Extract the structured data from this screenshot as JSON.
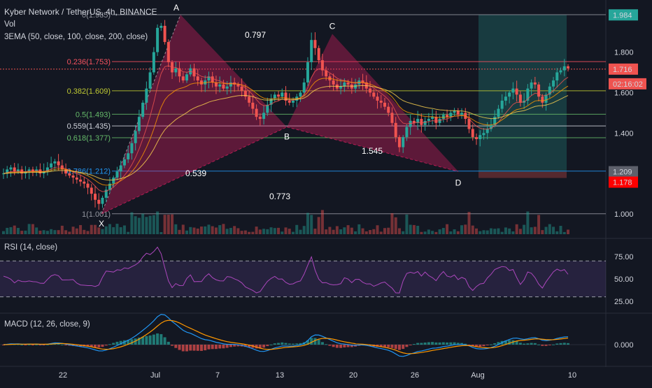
{
  "header": {
    "title": "Kyber Network / TetherUS, 4h, BINANCE",
    "vol_label": "Vol",
    "ema_label": "3EMA (50, close, 100, close, 200, close)",
    "rsi_label": "RSI (14, close)",
    "macd_label": "MACD (12, 26, close, 9)"
  },
  "chart_data": {
    "type": "candlestick",
    "symbol": "Kyber Network / TetherUS",
    "timeframe": "4h",
    "exchange": "BINANCE",
    "x_tick_labels": [
      "22",
      "Jul",
      "7",
      "13",
      "20",
      "26",
      "Aug",
      "10"
    ],
    "price_axis_ticks": [
      "1.800",
      "1.600",
      "1.400",
      "1.000"
    ],
    "price_ylim": [
      0.9,
      2.03
    ],
    "price_tags": [
      {
        "value": "1.984",
        "color": "#26a69a"
      },
      {
        "value": "1.716",
        "color": "#ef5350"
      },
      {
        "value": "02:16:02",
        "color": "#ef5350"
      },
      {
        "value": "1.209",
        "color": "#5d606b"
      },
      {
        "value": "1.178",
        "color": "#ff0000"
      }
    ],
    "fib_levels": [
      {
        "label": "0(1.985)",
        "price": 1.985,
        "color": "#9598a1"
      },
      {
        "label": "0.236(1.753)",
        "price": 1.753,
        "color": "#f7525f"
      },
      {
        "label": "0.382(1.609)",
        "price": 1.609,
        "color": "#c0ca33"
      },
      {
        "label": "0.5(1.493)",
        "price": 1.493,
        "color": "#66bb6a"
      },
      {
        "label": "0.559(1.435)",
        "price": 1.435,
        "color": "#d1d4dc"
      },
      {
        "label": "0.618(1.377)",
        "price": 1.377,
        "color": "#66bb6a"
      },
      {
        "label": "0.786(1.212)",
        "price": 1.212,
        "color": "#2196f3"
      },
      {
        "label": "1(1.001)",
        "price": 1.001,
        "color": "#9598a1"
      }
    ],
    "harmonic_points": [
      {
        "label": "X",
        "price": 1.001
      },
      {
        "label": "A",
        "price": 1.985
      },
      {
        "label": "B",
        "price": 1.43
      },
      {
        "label": "C",
        "price": 1.89
      },
      {
        "label": "D",
        "price": 1.21
      }
    ],
    "harmonic_ratios": [
      "0.797",
      "0.539",
      "0.773",
      "1.545"
    ],
    "close_series": [
      1.2,
      1.22,
      1.23,
      1.21,
      1.22,
      1.2,
      1.21,
      1.22,
      1.21,
      1.22,
      1.2,
      1.21,
      1.23,
      1.25,
      1.26,
      1.24,
      1.22,
      1.2,
      1.19,
      1.18,
      1.17,
      1.16,
      1.15,
      1.13,
      1.1,
      1.07,
      1.05,
      1.08,
      1.12,
      1.15,
      1.18,
      1.21,
      1.24,
      1.27,
      1.3,
      1.35,
      1.41,
      1.48,
      1.55,
      1.62,
      1.7,
      1.8,
      1.92,
      1.93,
      1.85,
      1.75,
      1.7,
      1.72,
      1.68,
      1.66,
      1.69,
      1.72,
      1.68,
      1.66,
      1.64,
      1.66,
      1.68,
      1.65,
      1.63,
      1.64,
      1.62,
      1.63,
      1.65,
      1.64,
      1.63,
      1.61,
      1.58,
      1.55,
      1.52,
      1.48,
      1.47,
      1.5,
      1.54,
      1.57,
      1.59,
      1.58,
      1.6,
      1.56,
      1.55,
      1.56,
      1.58,
      1.6,
      1.65,
      1.75,
      1.86,
      1.82,
      1.76,
      1.71,
      1.68,
      1.66,
      1.64,
      1.62,
      1.63,
      1.65,
      1.64,
      1.62,
      1.64,
      1.66,
      1.65,
      1.62,
      1.6,
      1.58,
      1.56,
      1.55,
      1.53,
      1.5,
      1.45,
      1.38,
      1.33,
      1.38,
      1.43,
      1.46,
      1.45,
      1.47,
      1.44,
      1.46,
      1.47,
      1.48,
      1.45,
      1.47,
      1.49,
      1.48,
      1.5,
      1.51,
      1.49,
      1.5,
      1.47,
      1.42,
      1.38,
      1.37,
      1.39,
      1.4,
      1.42,
      1.44,
      1.48,
      1.52,
      1.56,
      1.58,
      1.6,
      1.62,
      1.59,
      1.55,
      1.56,
      1.62,
      1.65,
      1.64,
      1.58,
      1.55,
      1.59,
      1.63,
      1.66,
      1.7,
      1.71,
      1.73,
      1.72
    ],
    "ema_series": [
      {
        "name": "EMA 50",
        "color": "#ef5350"
      },
      {
        "name": "EMA 100",
        "color": "#ff9800"
      },
      {
        "name": "EMA 200",
        "color": "#ffd54f"
      }
    ],
    "rsi": {
      "ticks": [
        "75.00",
        "50.00",
        "25.00"
      ],
      "ylim": [
        18,
        92
      ],
      "upper": 70,
      "lower": 30
    },
    "macd": {
      "ticks": [
        "0.000"
      ]
    }
  }
}
